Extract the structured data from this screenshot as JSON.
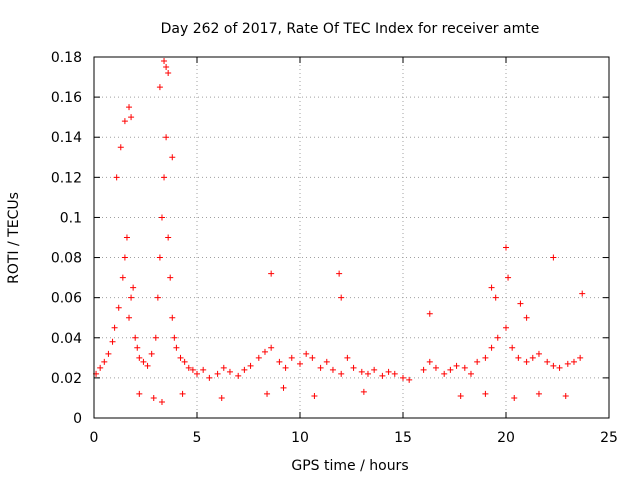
{
  "chart_data": {
    "type": "scatter",
    "title": "Day 262 of 2017, Rate Of TEC Index for receiver amte",
    "xlabel": "GPS time / hours",
    "ylabel": "ROTI / TECUs",
    "xlim": [
      0,
      25
    ],
    "ylim": [
      0,
      0.18
    ],
    "x_ticks": [
      "0",
      "5",
      "10",
      "15",
      "20",
      "25"
    ],
    "y_ticks": [
      "0",
      "0.02",
      "0.04",
      "0.06",
      "0.08",
      "0.1",
      "0.12",
      "0.14",
      "0.16",
      "0.18"
    ],
    "grid": true,
    "marker": "plus",
    "color": "#ff0000",
    "series": [
      {
        "x": [
          0.1,
          0.3,
          0.5,
          0.7,
          0.9,
          1.0,
          1.2,
          1.4,
          1.5,
          1.6,
          1.7,
          1.8,
          1.9,
          2.0,
          2.1,
          2.2,
          2.4,
          2.6,
          2.8,
          3.0,
          3.1,
          3.2,
          3.3,
          3.4,
          3.5,
          3.6,
          3.7,
          3.8,
          3.9,
          4.0,
          4.2,
          4.4,
          4.6,
          4.8,
          5.0,
          5.3,
          5.6,
          6.0,
          6.3,
          6.6,
          7.0,
          7.3,
          7.6,
          8.0,
          8.3,
          8.6,
          9.0,
          9.3,
          9.6,
          10.0,
          10.3,
          10.6,
          11.0,
          11.3,
          11.6,
          12.0,
          12.3,
          12.6,
          13.0,
          13.3,
          13.6,
          14.0,
          14.3,
          14.6,
          15.0,
          15.3,
          16.0,
          16.3,
          16.6,
          17.0,
          17.3,
          17.6,
          18.0,
          18.3,
          18.6,
          19.0,
          19.3,
          19.6,
          20.0,
          20.3,
          20.6,
          21.0,
          21.3,
          21.6,
          22.0,
          22.3,
          22.6,
          23.0,
          23.3,
          23.6,
          1.1,
          1.3,
          1.5,
          1.7,
          1.8,
          3.2,
          3.4,
          3.5,
          3.6,
          3.8,
          8.6,
          11.9,
          12.0,
          16.3,
          19.3,
          19.5,
          20.0,
          20.1,
          20.7,
          21.0,
          22.3,
          23.7,
          2.2,
          2.9,
          3.3,
          4.3,
          6.2,
          8.4,
          9.2,
          10.7,
          13.1,
          17.8,
          19.0,
          20.4,
          21.6,
          22.9
        ],
        "y": [
          0.022,
          0.025,
          0.028,
          0.032,
          0.038,
          0.045,
          0.055,
          0.07,
          0.08,
          0.09,
          0.05,
          0.06,
          0.065,
          0.04,
          0.035,
          0.03,
          0.028,
          0.026,
          0.032,
          0.04,
          0.06,
          0.08,
          0.1,
          0.12,
          0.14,
          0.09,
          0.07,
          0.05,
          0.04,
          0.035,
          0.03,
          0.028,
          0.025,
          0.024,
          0.022,
          0.024,
          0.02,
          0.022,
          0.025,
          0.023,
          0.021,
          0.024,
          0.026,
          0.03,
          0.033,
          0.035,
          0.028,
          0.025,
          0.03,
          0.027,
          0.032,
          0.03,
          0.025,
          0.028,
          0.024,
          0.022,
          0.03,
          0.025,
          0.023,
          0.022,
          0.024,
          0.021,
          0.023,
          0.022,
          0.02,
          0.019,
          0.024,
          0.028,
          0.025,
          0.022,
          0.024,
          0.026,
          0.025,
          0.022,
          0.028,
          0.03,
          0.035,
          0.04,
          0.045,
          0.035,
          0.03,
          0.028,
          0.03,
          0.032,
          0.028,
          0.026,
          0.025,
          0.027,
          0.028,
          0.03,
          0.12,
          0.135,
          0.148,
          0.155,
          0.15,
          0.165,
          0.178,
          0.175,
          0.172,
          0.13,
          0.072,
          0.072,
          0.06,
          0.052,
          0.065,
          0.06,
          0.085,
          0.07,
          0.057,
          0.05,
          0.08,
          0.062,
          0.012,
          0.01,
          0.008,
          0.012,
          0.01,
          0.012,
          0.015,
          0.011,
          0.013,
          0.011,
          0.012,
          0.01,
          0.012,
          0.011
        ]
      }
    ]
  }
}
